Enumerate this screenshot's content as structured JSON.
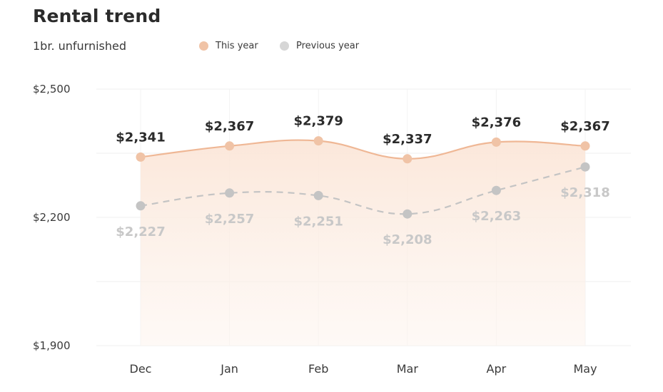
{
  "chart_data": {
    "type": "area",
    "title": "Rental trend",
    "subtitle": "1br. unfurnished",
    "categories": [
      "Dec",
      "Jan",
      "Feb",
      "Mar",
      "Apr",
      "May"
    ],
    "ylim": [
      1900,
      2500
    ],
    "yticks": [
      {
        "value": 2500,
        "label": "$2,500"
      },
      {
        "value": 2200,
        "label": "$2,200"
      },
      {
        "value": 1900,
        "label": "$1,900"
      }
    ],
    "series": [
      {
        "name": "This year",
        "color": "#f0c3a6",
        "line_color": "#efb795",
        "style": "solid-area",
        "values": [
          2341,
          2367,
          2379,
          2337,
          2376,
          2367
        ],
        "labels": [
          "$2,341",
          "$2,367",
          "$2,379",
          "$2,337",
          "$2,376",
          "$2,367"
        ]
      },
      {
        "name": "Previous year",
        "color": "#d6d6d6",
        "line_color": "#c4c4c4",
        "style": "dashed",
        "values": [
          2227,
          2257,
          2251,
          2208,
          2263,
          2318
        ],
        "labels": [
          "$2,227",
          "$2,257",
          "$2,251",
          "$2,208",
          "$2,263",
          "$2,318"
        ]
      }
    ],
    "legend": "top",
    "grid": true
  }
}
